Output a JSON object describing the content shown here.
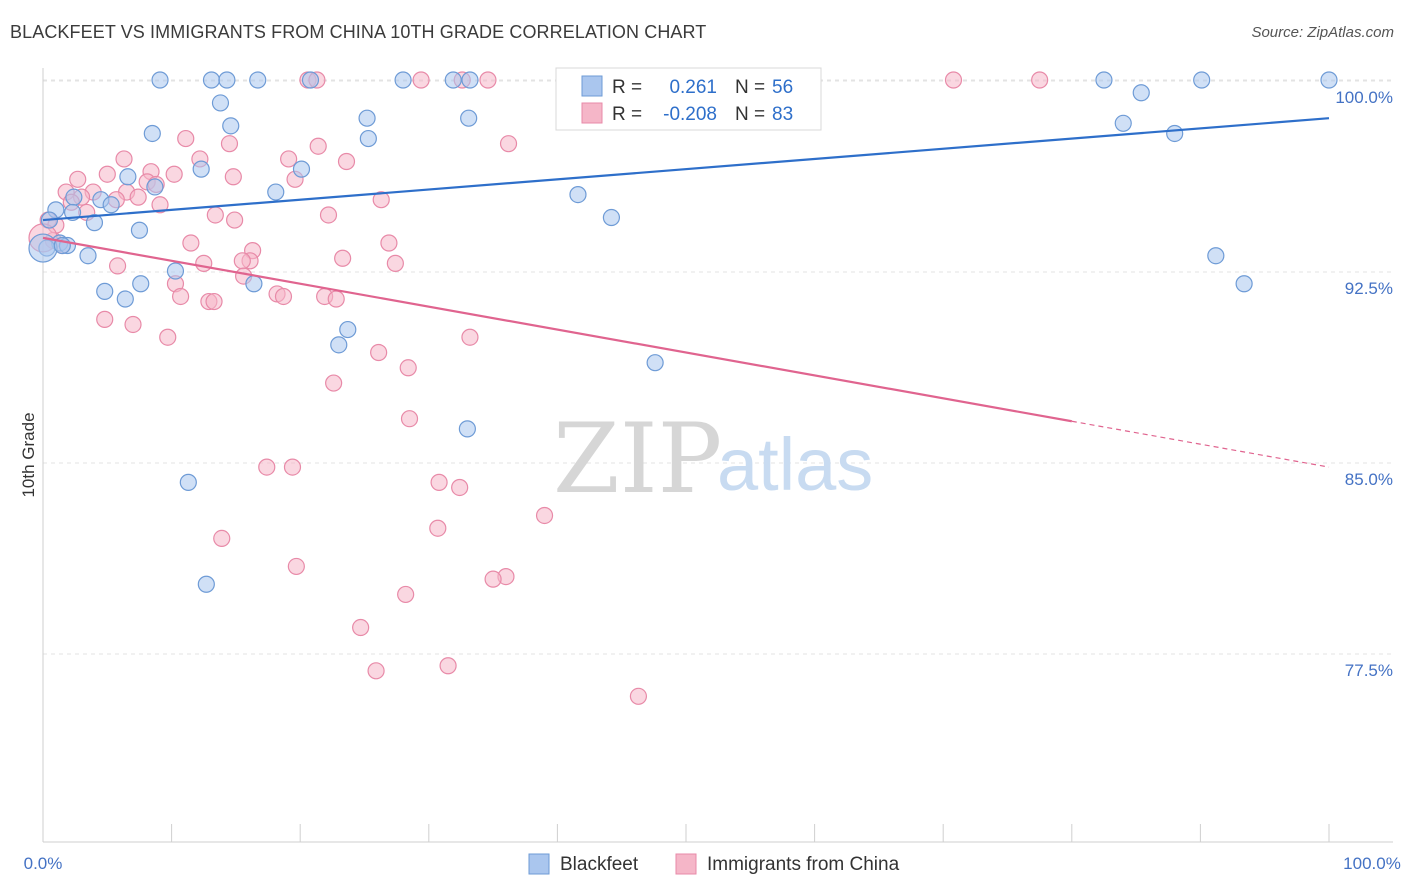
{
  "title": "BLACKFEET VS IMMIGRANTS FROM CHINA 10TH GRADE CORRELATION CHART",
  "source": "Source: ZipAtlas.com",
  "watermark": {
    "zip": "ZIP",
    "atlas": "atlas"
  },
  "colors": {
    "blue_fill": "#aac6ee",
    "blue_stroke": "#6e9bd6",
    "blue_line": "#2e6fca",
    "pink_fill": "#f5b6c8",
    "pink_stroke": "#e88aa8",
    "pink_line": "#e0648f",
    "tick_text": "#4472c4",
    "grid": "#e3e3e3"
  },
  "legend_box": {
    "rows": [
      {
        "r_label": "R =",
        "r_value": "0.261",
        "n_label": "N =",
        "n_value": "56",
        "series": "blue"
      },
      {
        "r_label": "R =",
        "r_value": "-0.208",
        "n_label": "N =",
        "n_value": "83",
        "series": "pink"
      }
    ]
  },
  "bottom_legend": [
    {
      "label": "Blackfeet",
      "series": "blue"
    },
    {
      "label": "Immigrants from China",
      "series": "pink"
    }
  ],
  "chart_data": {
    "type": "scatter",
    "title": "BLACKFEET VS IMMIGRANTS FROM CHINA 10TH GRADE CORRELATION CHART",
    "xlabel": "",
    "ylabel": "10th Grade",
    "xlim": [
      0,
      100
    ],
    "ylim": [
      70.5,
      101.0
    ],
    "x_tick_labels": [
      "0.0%",
      "100.0%"
    ],
    "y_ticks": [
      100.0,
      92.5,
      85.0,
      77.5
    ],
    "y_tick_labels": [
      "100.0%",
      "92.5%",
      "85.0%",
      "77.5%"
    ],
    "grid": true,
    "legend_position": "bottom",
    "series": [
      {
        "name": "Blackfeet",
        "color": "blue",
        "trend": {
          "x0": 0,
          "y0": 94.5,
          "x1": 100,
          "y1": 98.5,
          "dashed_from": null
        },
        "points": [
          [
            9.1,
            100
          ],
          [
            13.1,
            100
          ],
          [
            14.3,
            100
          ],
          [
            16.7,
            100
          ],
          [
            20.8,
            100
          ],
          [
            28.0,
            100
          ],
          [
            31.9,
            100
          ],
          [
            33.2,
            100
          ],
          [
            46.7,
            100
          ],
          [
            47.9,
            100
          ],
          [
            82.5,
            100
          ],
          [
            90.1,
            100
          ],
          [
            100.0,
            100
          ],
          [
            13.8,
            99.1
          ],
          [
            85.4,
            99.5
          ],
          [
            14.6,
            98.2
          ],
          [
            25.2,
            98.5
          ],
          [
            33.1,
            98.5
          ],
          [
            84.0,
            98.3
          ],
          [
            88.0,
            97.9
          ],
          [
            8.5,
            97.9
          ],
          [
            25.3,
            97.7
          ],
          [
            12.3,
            96.5
          ],
          [
            20.1,
            96.5
          ],
          [
            6.6,
            96.2
          ],
          [
            8.7,
            95.8
          ],
          [
            18.1,
            95.6
          ],
          [
            41.6,
            95.5
          ],
          [
            4.5,
            95.3
          ],
          [
            5.3,
            95.1
          ],
          [
            2.4,
            95.4
          ],
          [
            1.0,
            94.9
          ],
          [
            2.3,
            94.8
          ],
          [
            4.0,
            94.4
          ],
          [
            44.2,
            94.6
          ],
          [
            7.5,
            94.1
          ],
          [
            0.5,
            94.5
          ],
          [
            1.3,
            93.6
          ],
          [
            0.3,
            93.4
          ],
          [
            1.9,
            93.5
          ],
          [
            3.5,
            93.1
          ],
          [
            91.2,
            93.1
          ],
          [
            10.3,
            92.5
          ],
          [
            16.4,
            92.0
          ],
          [
            7.6,
            92.0
          ],
          [
            93.4,
            92.0
          ],
          [
            4.8,
            91.7
          ],
          [
            6.4,
            91.4
          ],
          [
            23.7,
            90.2
          ],
          [
            23.0,
            89.6
          ],
          [
            47.6,
            88.9
          ],
          [
            33.0,
            86.3
          ],
          [
            11.3,
            84.2
          ],
          [
            12.7,
            80.2
          ],
          [
            0.0,
            93.4
          ],
          [
            1.5,
            93.5
          ]
        ]
      },
      {
        "name": "Immigrants from China",
        "color": "pink",
        "trend": {
          "x0": 0,
          "y0": 93.8,
          "x1": 100,
          "y1": 84.8,
          "dashed_from": 80
        },
        "points": [
          [
            20.6,
            100
          ],
          [
            21.3,
            100
          ],
          [
            29.4,
            100
          ],
          [
            32.6,
            100
          ],
          [
            34.6,
            100
          ],
          [
            40.8,
            100
          ],
          [
            70.8,
            100
          ],
          [
            77.5,
            100
          ],
          [
            36.2,
            97.5
          ],
          [
            11.1,
            97.7
          ],
          [
            14.5,
            97.5
          ],
          [
            21.4,
            97.4
          ],
          [
            6.3,
            96.9
          ],
          [
            12.2,
            96.9
          ],
          [
            19.1,
            96.9
          ],
          [
            23.6,
            96.8
          ],
          [
            8.4,
            96.4
          ],
          [
            10.2,
            96.3
          ],
          [
            5.0,
            96.3
          ],
          [
            14.8,
            96.2
          ],
          [
            19.6,
            96.1
          ],
          [
            2.7,
            96.1
          ],
          [
            8.1,
            96.0
          ],
          [
            8.8,
            95.9
          ],
          [
            6.5,
            95.6
          ],
          [
            1.8,
            95.6
          ],
          [
            3.9,
            95.6
          ],
          [
            3.0,
            95.4
          ],
          [
            7.4,
            95.4
          ],
          [
            5.7,
            95.3
          ],
          [
            2.2,
            95.2
          ],
          [
            26.3,
            95.3
          ],
          [
            9.1,
            95.1
          ],
          [
            3.4,
            94.8
          ],
          [
            13.4,
            94.7
          ],
          [
            22.2,
            94.7
          ],
          [
            14.9,
            94.5
          ],
          [
            0.4,
            94.5
          ],
          [
            1.0,
            94.3
          ],
          [
            0.8,
            93.7
          ],
          [
            1.5,
            93.5
          ],
          [
            11.5,
            93.6
          ],
          [
            26.9,
            93.6
          ],
          [
            16.3,
            93.3
          ],
          [
            16.1,
            92.9
          ],
          [
            23.3,
            93.0
          ],
          [
            15.5,
            92.9
          ],
          [
            12.5,
            92.8
          ],
          [
            5.8,
            92.7
          ],
          [
            27.4,
            92.8
          ],
          [
            15.6,
            92.3
          ],
          [
            10.3,
            92.0
          ],
          [
            18.2,
            91.6
          ],
          [
            18.7,
            91.5
          ],
          [
            10.7,
            91.5
          ],
          [
            21.9,
            91.5
          ],
          [
            22.8,
            91.4
          ],
          [
            12.9,
            91.3
          ],
          [
            13.3,
            91.3
          ],
          [
            4.8,
            90.6
          ],
          [
            7.0,
            90.4
          ],
          [
            9.7,
            89.9
          ],
          [
            33.2,
            89.9
          ],
          [
            26.1,
            89.3
          ],
          [
            28.4,
            88.7
          ],
          [
            22.6,
            88.1
          ],
          [
            28.5,
            86.7
          ],
          [
            17.4,
            84.8
          ],
          [
            19.4,
            84.8
          ],
          [
            30.8,
            84.2
          ],
          [
            32.4,
            84.0
          ],
          [
            39.0,
            82.9
          ],
          [
            30.7,
            82.4
          ],
          [
            13.9,
            82.0
          ],
          [
            19.7,
            80.9
          ],
          [
            36.0,
            80.5
          ],
          [
            35.0,
            80.4
          ],
          [
            28.2,
            79.8
          ],
          [
            24.7,
            78.5
          ],
          [
            25.9,
            76.8
          ],
          [
            31.5,
            77.0
          ],
          [
            46.3,
            75.8
          ],
          [
            0.0,
            93.8
          ]
        ]
      }
    ]
  }
}
